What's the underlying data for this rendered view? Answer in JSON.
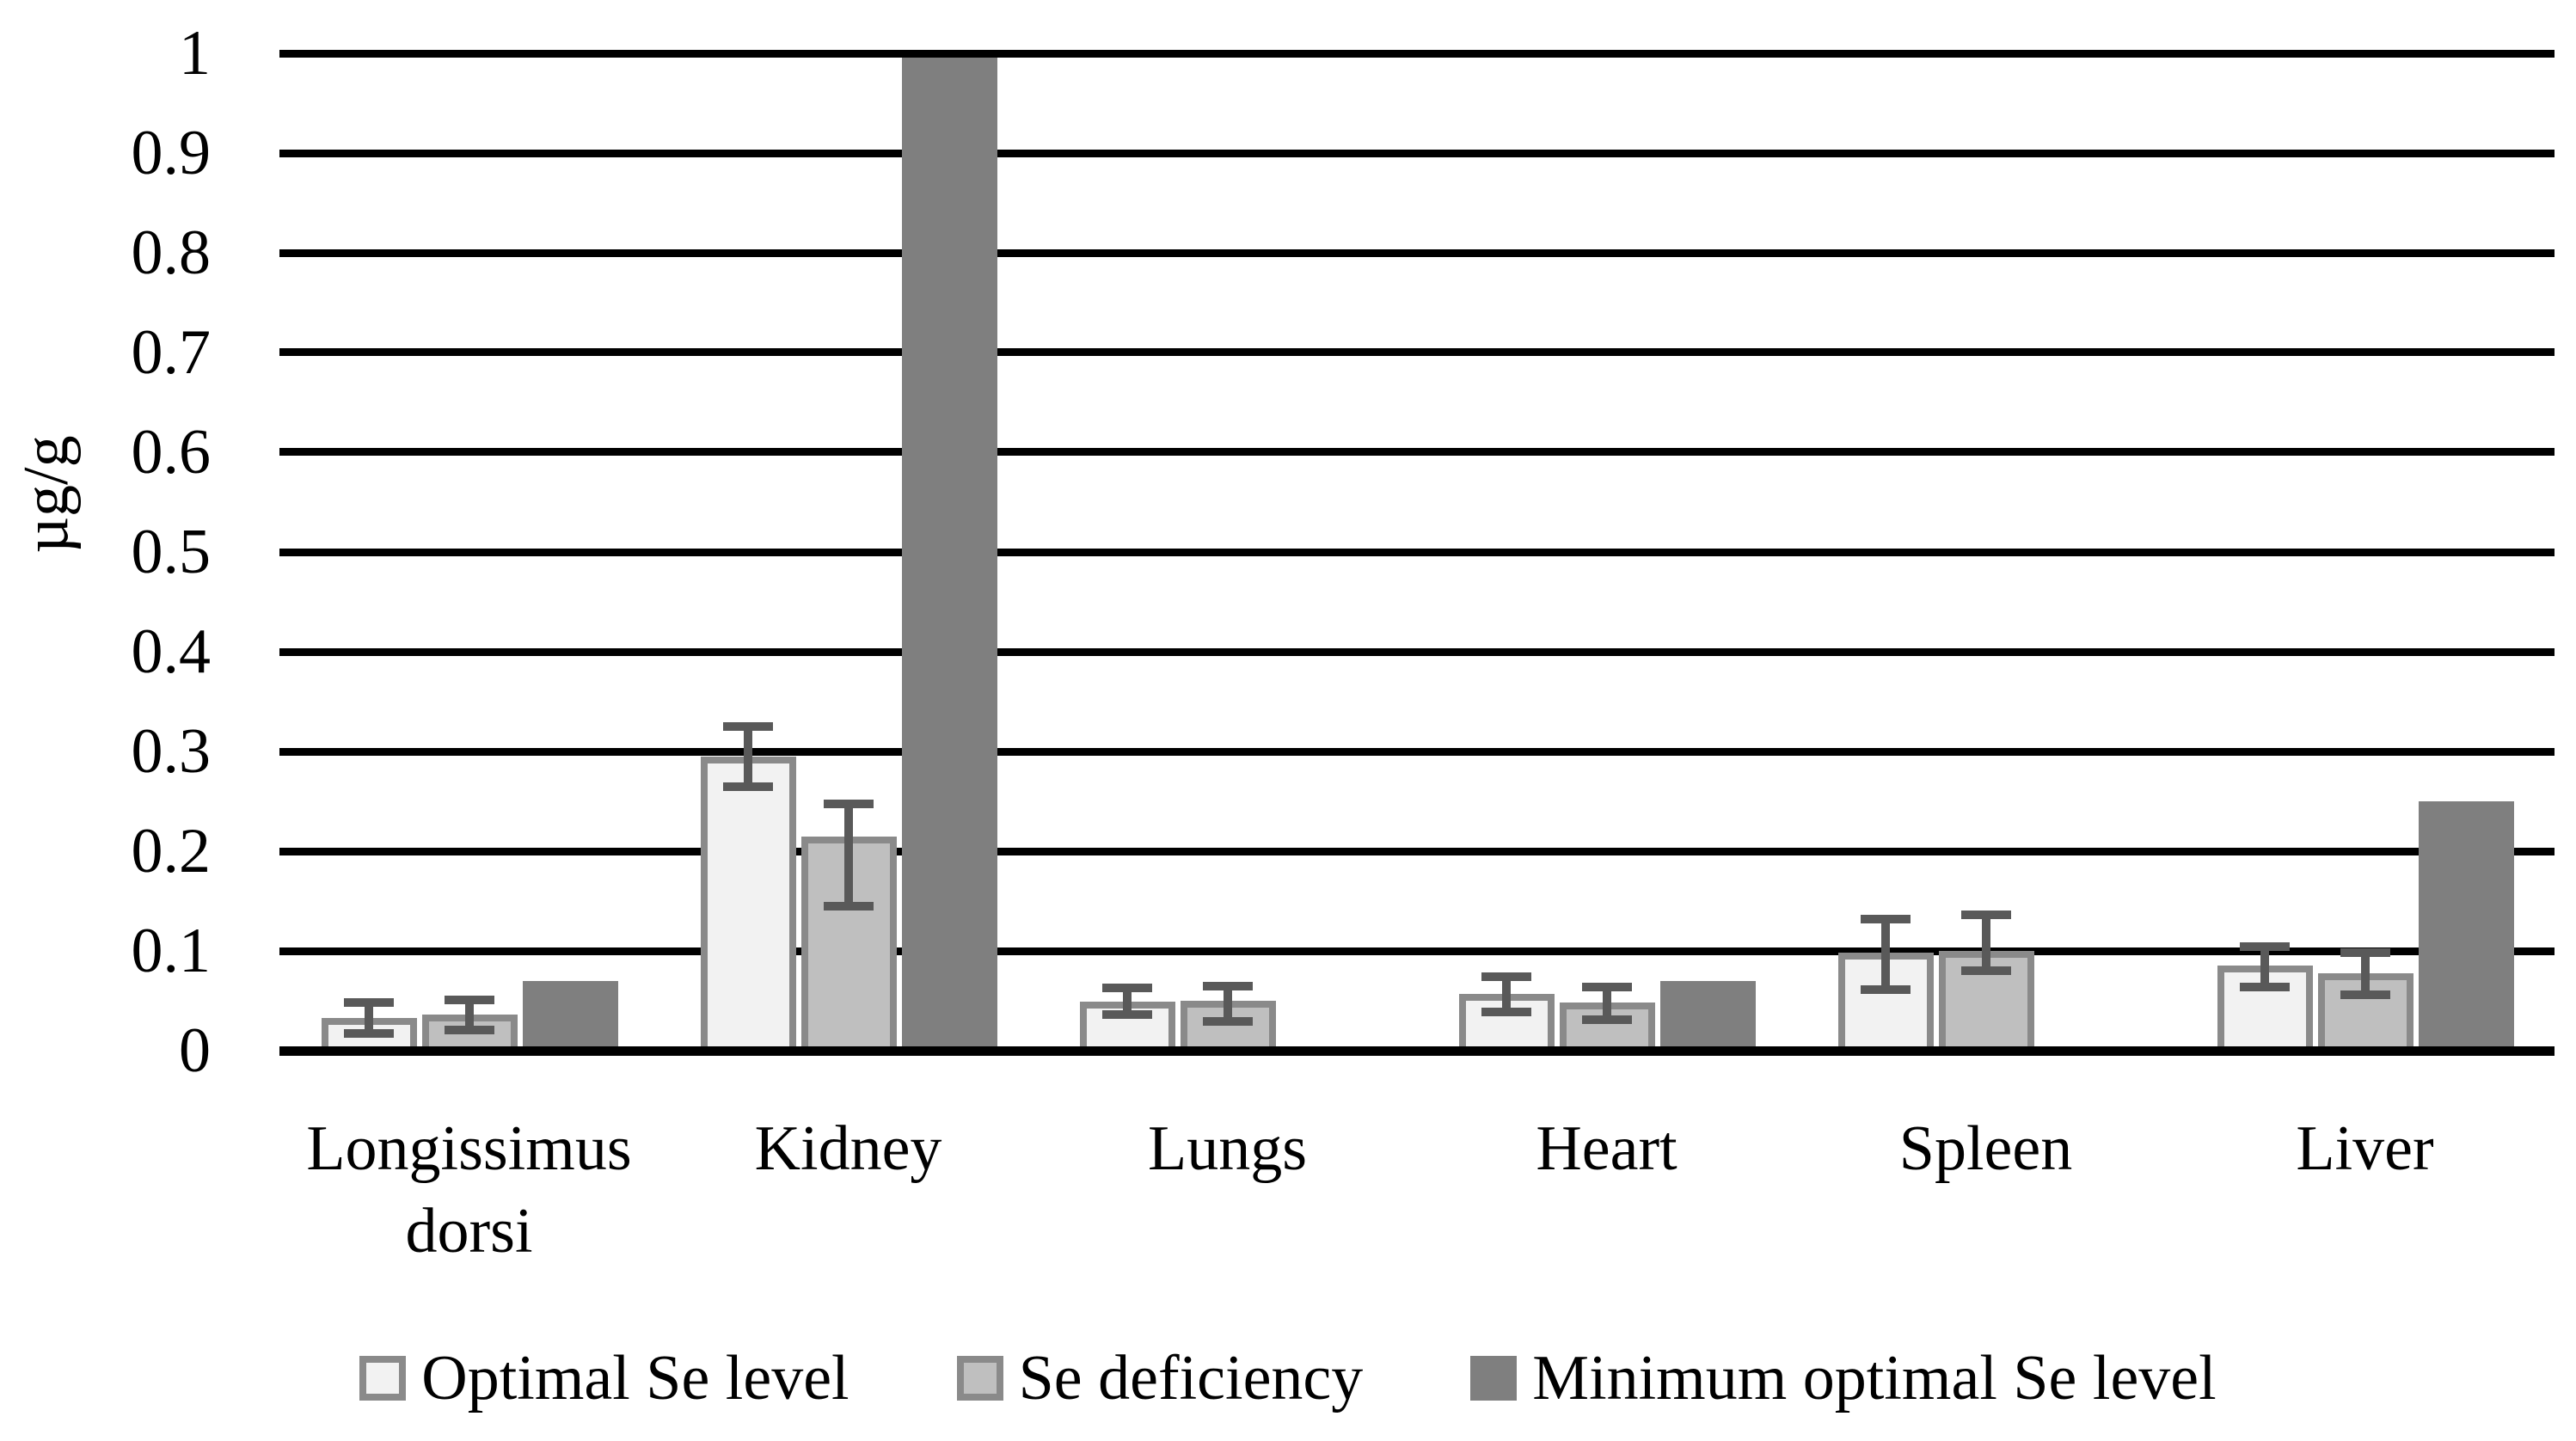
{
  "figure": {
    "background_color": "#ffffff",
    "gridline_color": "#000000",
    "error_bar_color": "#595959",
    "bar_border_color": "#8a8a8a"
  },
  "chart_data": {
    "type": "bar",
    "title": "",
    "xlabel": "",
    "ylabel": "µg/g",
    "ylim": [
      0,
      1
    ],
    "ytick_step": 0.1,
    "tick_labels": [
      "0",
      "0.1",
      "0.2",
      "0.3",
      "0.4",
      "0.5",
      "0.6",
      "0.7",
      "0.8",
      "0.9",
      "1"
    ],
    "grid": "horizontal",
    "legend_position": "bottom",
    "categories": [
      "Longissimus dorsi",
      "Kidney",
      "Lungs",
      "Heart",
      "Spleen",
      "Liver"
    ],
    "series": [
      {
        "name": "Optimal Se level",
        "fill": "#f2f2f2",
        "border": "#8a8a8a",
        "values": [
          0.033,
          0.295,
          0.049,
          0.057,
          0.098,
          0.085
        ],
        "error_low": [
          0.017,
          0.265,
          0.036,
          0.039,
          0.061,
          0.064
        ],
        "error_high": [
          0.048,
          0.325,
          0.063,
          0.074,
          0.132,
          0.104
        ]
      },
      {
        "name": "Se deficiency",
        "fill": "#bfbfbf",
        "border": "#8a8a8a",
        "values": [
          0.036,
          0.215,
          0.05,
          0.048,
          0.1,
          0.078
        ],
        "error_low": [
          0.021,
          0.145,
          0.029,
          0.031,
          0.08,
          0.056
        ],
        "error_high": [
          0.051,
          0.247,
          0.065,
          0.064,
          0.136,
          0.098
        ]
      },
      {
        "name": "Minimum optimal Se level",
        "fill": "#7f7f7f",
        "border": null,
        "values": [
          0.07,
          1.0,
          null,
          0.07,
          null,
          0.25
        ],
        "error_low": null,
        "error_high": null
      }
    ]
  }
}
